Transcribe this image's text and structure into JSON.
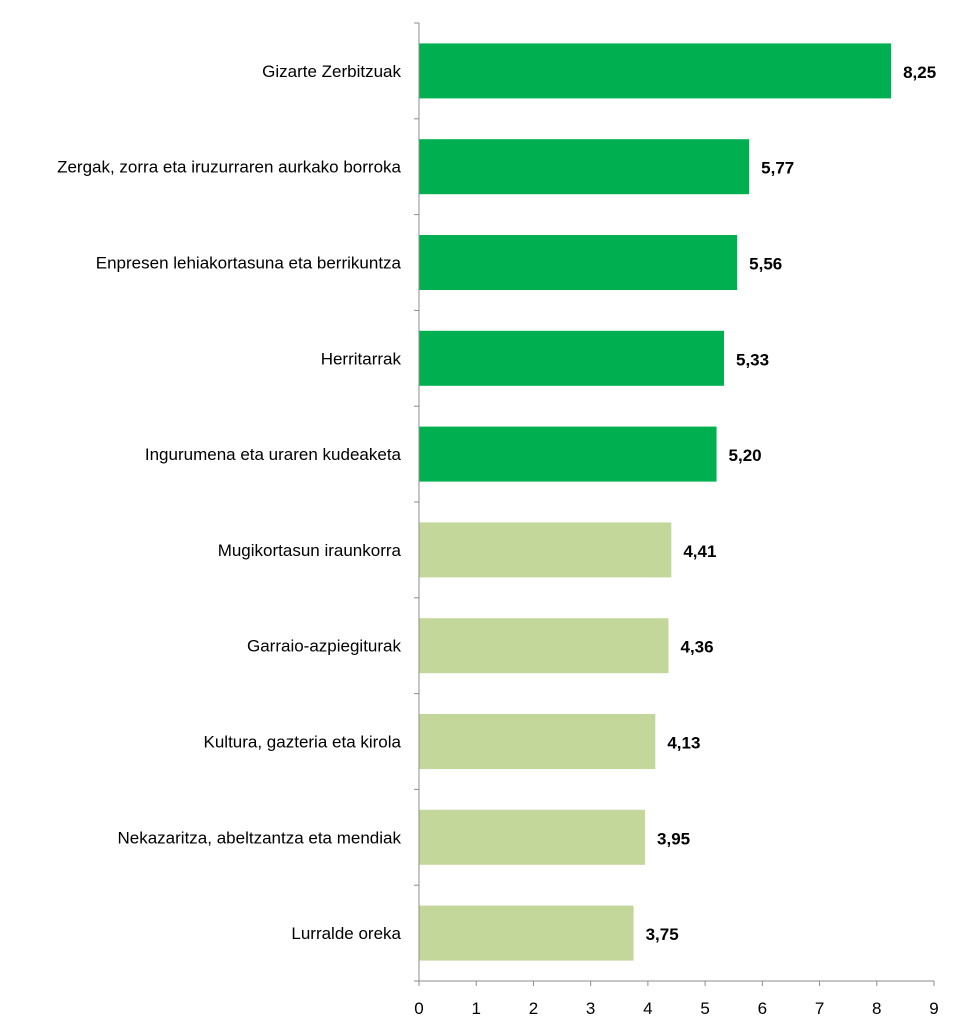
{
  "chart_data": {
    "type": "bar",
    "orientation": "horizontal",
    "title": "",
    "xlabel": "",
    "ylabel": "",
    "xlim": [
      0,
      9
    ],
    "xticks": [
      0,
      1,
      2,
      3,
      4,
      5,
      6,
      7,
      8,
      9
    ],
    "grid": false,
    "legend": "none",
    "categories": [
      "Gizarte Zerbitzuak",
      "Zergak, zorra eta iruzurraren aurkako borroka",
      "Enpresen lehiakortasuna eta berrikuntza",
      "Herritarrak",
      "Ingurumena eta uraren kudeaketa",
      "Mugikortasun iraunkorra",
      "Garraio-azpiegiturak",
      "Kultura, gazteria eta kirola",
      "Nekazaritza, abeltzantza eta mendiak",
      "Lurralde oreka"
    ],
    "values": [
      8.25,
      5.77,
      5.56,
      5.33,
      5.2,
      4.41,
      4.36,
      4.13,
      3.95,
      3.75
    ],
    "value_labels": [
      "8,25",
      "5,77",
      "5,56",
      "5,33",
      "5,20",
      "4,41",
      "4,36",
      "4,13",
      "3,95",
      "3,75"
    ],
    "bar_colors": [
      "#00b050",
      "#00b050",
      "#00b050",
      "#00b050",
      "#00b050",
      "#c4d79b",
      "#c4d79b",
      "#c4d79b",
      "#c4d79b",
      "#c4d79b"
    ]
  }
}
